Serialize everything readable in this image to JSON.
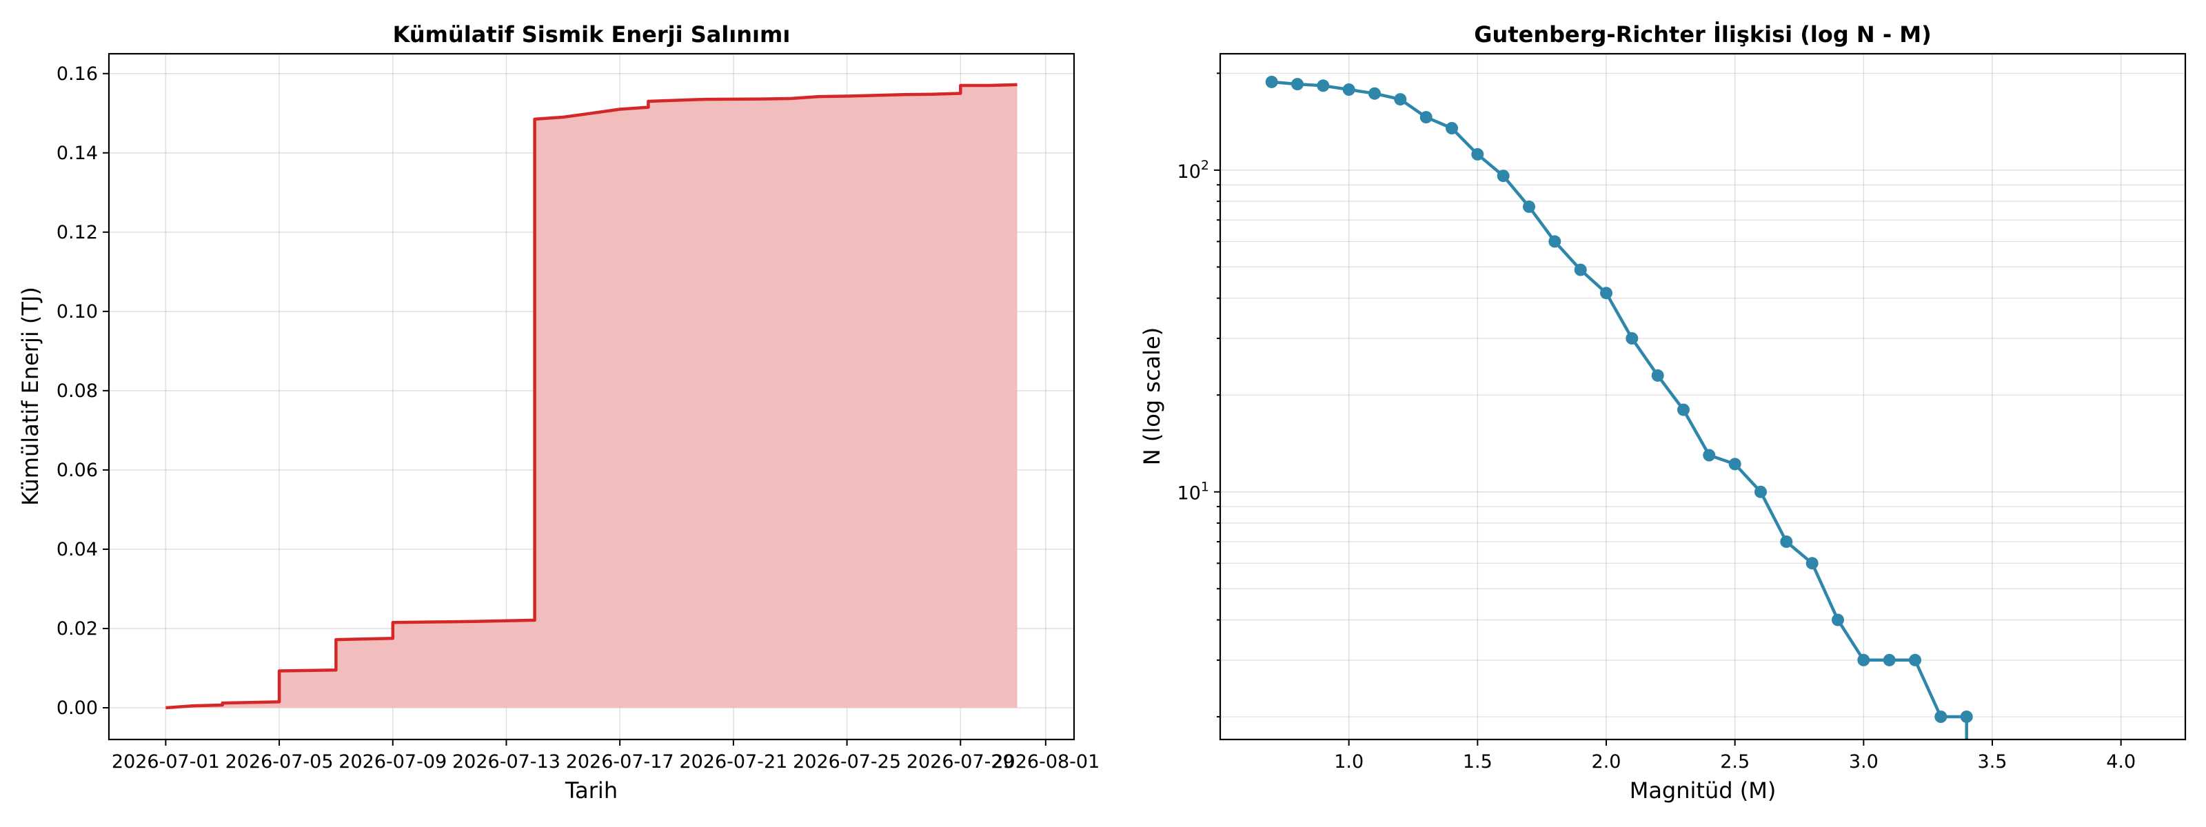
{
  "chart_data": [
    {
      "type": "area",
      "title": "Kümülatif Sismik Enerji Salınımı",
      "xlabel": "Tarih",
      "ylabel": "Kümülatif Enerji (TJ)",
      "x_axis_type": "date",
      "xlim": [
        "2026-06-29",
        "2026-08-02"
      ],
      "ylim": [
        -0.008,
        0.165
      ],
      "x_ticks": [
        "2026-07-01",
        "2026-07-05",
        "2026-07-09",
        "2026-07-13",
        "2026-07-17",
        "2026-07-21",
        "2026-07-25",
        "2026-07-29",
        "2026-08-01"
      ],
      "y_ticks": [
        0.0,
        0.02,
        0.04,
        0.06,
        0.08,
        0.1,
        0.12,
        0.14,
        0.16
      ],
      "y_tick_labels": [
        "0.00",
        "0.02",
        "0.04",
        "0.06",
        "0.08",
        "0.10",
        "0.12",
        "0.14",
        "0.16"
      ],
      "grid": true,
      "line_color": "#d62728",
      "fill_color": "#f1bdbd",
      "series": [
        {
          "x": [
            "2026-07-01",
            "2026-07-02",
            "2026-07-03",
            "2026-07-03",
            "2026-07-05",
            "2026-07-05",
            "2026-07-07",
            "2026-07-07",
            "2026-07-09",
            "2026-07-09",
            "2026-07-11",
            "2026-07-12",
            "2026-07-14",
            "2026-07-14",
            "2026-07-14",
            "2026-07-14",
            "2026-07-15",
            "2026-07-16",
            "2026-07-17",
            "2026-07-18",
            "2026-07-18",
            "2026-07-20",
            "2026-07-22",
            "2026-07-23",
            "2026-07-24",
            "2026-07-25",
            "2026-07-26",
            "2026-07-27",
            "2026-07-28",
            "2026-07-29",
            "2026-07-29",
            "2026-07-30",
            "2026-07-31"
          ],
          "y": [
            0.0,
            0.0005,
            0.0007,
            0.0012,
            0.0015,
            0.0093,
            0.0095,
            0.0172,
            0.0175,
            0.0215,
            0.0217,
            0.0218,
            0.0221,
            0.0228,
            0.0228,
            0.1485,
            0.149,
            0.15,
            0.151,
            0.1515,
            0.153,
            0.1535,
            0.1536,
            0.1537,
            0.1542,
            0.1543,
            0.1545,
            0.1547,
            0.1548,
            0.155,
            0.157,
            0.157,
            0.1572
          ]
        }
      ]
    },
    {
      "type": "line",
      "title": "Gutenberg-Richter İlişkisi (log N - M)",
      "xlabel": "Magnitüd (M)",
      "ylabel": "N (log scale)",
      "y_scale": "log",
      "xlim": [
        0.5,
        4.25
      ],
      "ylim": [
        1.7,
        230
      ],
      "x_ticks": [
        1.0,
        1.5,
        2.0,
        2.5,
        3.0,
        3.5,
        4.0
      ],
      "x_tick_labels": [
        "1.0",
        "1.5",
        "2.0",
        "2.5",
        "3.0",
        "3.5",
        "4.0"
      ],
      "y_major_ticks": [
        10,
        100
      ],
      "y_tick_labels": [
        {
          "base": "10",
          "exp": "1"
        },
        {
          "base": "10",
          "exp": "2"
        }
      ],
      "y_minor_ticks": [
        2,
        3,
        4,
        5,
        6,
        7,
        8,
        9,
        20,
        30,
        40,
        50,
        60,
        70,
        80,
        90,
        200
      ],
      "grid": true,
      "line_color": "#2e86ab",
      "series": [
        {
          "x": [
            0.7,
            0.8,
            0.9,
            1.0,
            1.1,
            1.2,
            1.3,
            1.4,
            1.5,
            1.6,
            1.7,
            1.8,
            1.9,
            2.0,
            2.1,
            2.2,
            2.3,
            2.4,
            2.5,
            2.6,
            2.7,
            2.8,
            2.9,
            3.0,
            3.1,
            3.2,
            3.3,
            3.4
          ],
          "y": [
            188,
            185,
            183,
            178,
            173,
            166,
            146,
            135,
            112,
            96,
            77,
            60,
            49,
            41.5,
            30,
            23,
            18,
            13,
            12.2,
            10,
            7,
            6,
            4,
            3,
            3,
            3,
            2,
            2
          ]
        }
      ],
      "tail_drop_x": 3.4
    }
  ]
}
